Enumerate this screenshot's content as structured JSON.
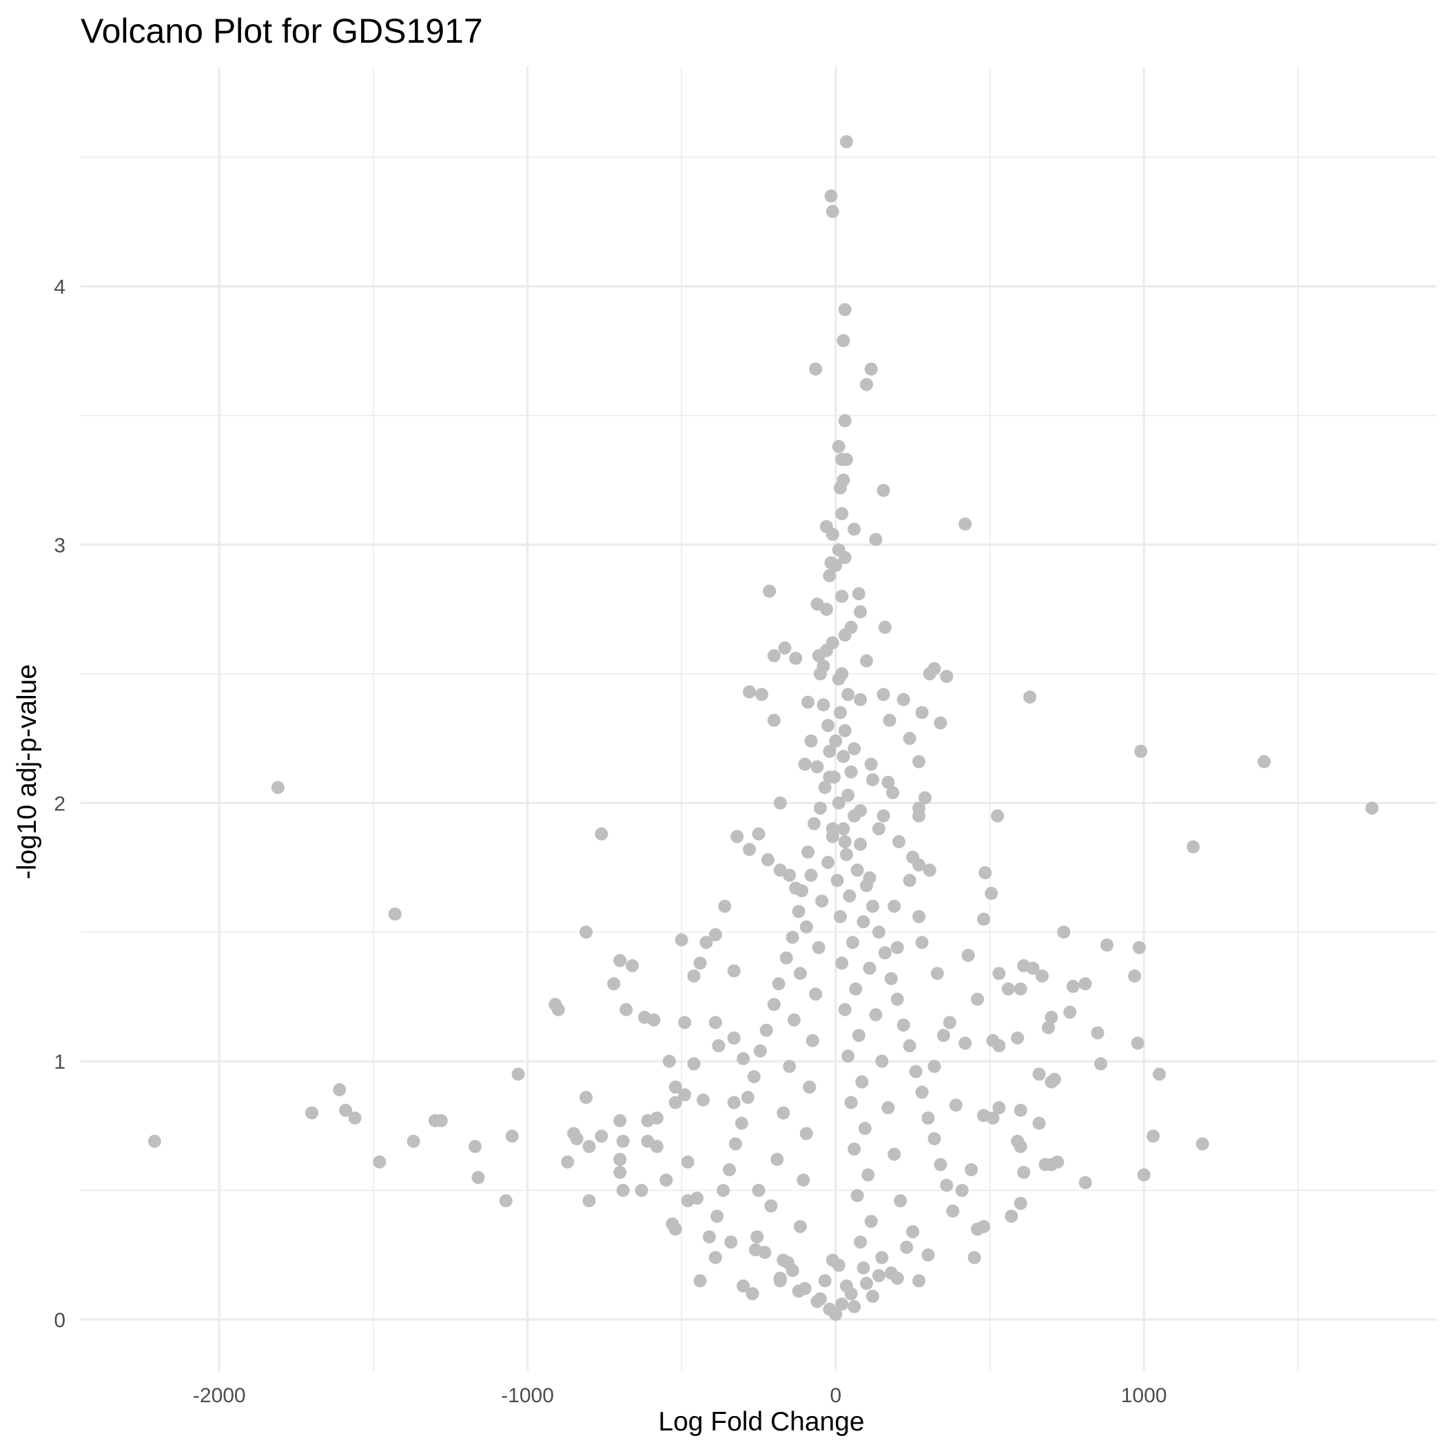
{
  "chart_data": {
    "type": "scatter",
    "title": "Volcano Plot for GDS1917",
    "xlabel": "Log Fold Change",
    "ylabel": "-log10 adj-p-value",
    "xlim": [
      -2450,
      1950
    ],
    "ylim": [
      -0.2,
      4.85
    ],
    "x_ticks": [
      -2000,
      -1000,
      0,
      1000
    ],
    "x_tick_labels": [
      "-2000",
      "-1000",
      "0",
      "1000"
    ],
    "y_ticks": [
      0,
      1,
      2,
      3,
      4
    ],
    "y_tick_labels": [
      "0",
      "1",
      "2",
      "3",
      "4"
    ],
    "x_minor_ticks": [
      -1500,
      -500,
      500,
      1500
    ],
    "y_minor_ticks": [
      0.5,
      1.5,
      2.5,
      3.5,
      4.5
    ],
    "grid": true,
    "legend": "none",
    "point_color": "#bebebe",
    "points": [
      [
        35,
        4.56
      ],
      [
        -15,
        4.35
      ],
      [
        -10,
        4.29
      ],
      [
        30,
        3.91
      ],
      [
        25,
        3.79
      ],
      [
        -65,
        3.68
      ],
      [
        115,
        3.68
      ],
      [
        100,
        3.62
      ],
      [
        30,
        3.48
      ],
      [
        10,
        3.38
      ],
      [
        20,
        3.33
      ],
      [
        35,
        3.33
      ],
      [
        25,
        3.25
      ],
      [
        15,
        3.22
      ],
      [
        155,
        3.21
      ],
      [
        420,
        3.08
      ],
      [
        20,
        3.12
      ],
      [
        -30,
        3.07
      ],
      [
        60,
        3.06
      ],
      [
        130,
        3.02
      ],
      [
        -10,
        3.04
      ],
      [
        10,
        2.98
      ],
      [
        -15,
        2.93
      ],
      [
        30,
        2.95
      ],
      [
        0,
        2.92
      ],
      [
        -20,
        2.88
      ],
      [
        -215,
        2.82
      ],
      [
        75,
        2.81
      ],
      [
        20,
        2.8
      ],
      [
        -60,
        2.77
      ],
      [
        80,
        2.74
      ],
      [
        -30,
        2.75
      ],
      [
        160,
        2.68
      ],
      [
        50,
        2.68
      ],
      [
        30,
        2.65
      ],
      [
        -165,
        2.6
      ],
      [
        -200,
        2.57
      ],
      [
        -130,
        2.56
      ],
      [
        100,
        2.55
      ],
      [
        -55,
        2.57
      ],
      [
        -40,
        2.53
      ],
      [
        320,
        2.52
      ],
      [
        305,
        2.5
      ],
      [
        360,
        2.49
      ],
      [
        20,
        2.5
      ],
      [
        -280,
        2.43
      ],
      [
        -240,
        2.42
      ],
      [
        630,
        2.41
      ],
      [
        155,
        2.42
      ],
      [
        220,
        2.4
      ],
      [
        -90,
        2.39
      ],
      [
        80,
        2.4
      ],
      [
        280,
        2.35
      ],
      [
        -200,
        2.32
      ],
      [
        175,
        2.32
      ],
      [
        340,
        2.31
      ],
      [
        240,
        2.25
      ],
      [
        -80,
        2.24
      ],
      [
        60,
        2.21
      ],
      [
        990,
        2.2
      ],
      [
        1390,
        2.16
      ],
      [
        -1810,
        2.06
      ],
      [
        -100,
        2.15
      ],
      [
        270,
        2.16
      ],
      [
        115,
        2.15
      ],
      [
        -20,
        2.1
      ],
      [
        170,
        2.08
      ],
      [
        120,
        2.09
      ],
      [
        185,
        2.04
      ],
      [
        290,
        2.02
      ],
      [
        -180,
        2.0
      ],
      [
        270,
        1.98
      ],
      [
        525,
        1.95
      ],
      [
        1740,
        1.98
      ],
      [
        80,
        1.97
      ],
      [
        155,
        1.95
      ],
      [
        270,
        1.95
      ],
      [
        -760,
        1.88
      ],
      [
        -320,
        1.87
      ],
      [
        -250,
        1.88
      ],
      [
        -10,
        1.9
      ],
      [
        140,
        1.9
      ],
      [
        205,
        1.85
      ],
      [
        1160,
        1.83
      ],
      [
        -280,
        1.82
      ],
      [
        30,
        1.85
      ],
      [
        -220,
        1.78
      ],
      [
        -180,
        1.74
      ],
      [
        250,
        1.79
      ],
      [
        270,
        1.76
      ],
      [
        305,
        1.74
      ],
      [
        485,
        1.73
      ],
      [
        -150,
        1.72
      ],
      [
        110,
        1.71
      ],
      [
        240,
        1.7
      ],
      [
        505,
        1.65
      ],
      [
        -130,
        1.67
      ],
      [
        190,
        1.6
      ],
      [
        -1430,
        1.57
      ],
      [
        -360,
        1.6
      ],
      [
        270,
        1.56
      ],
      [
        480,
        1.55
      ],
      [
        740,
        1.5
      ],
      [
        -810,
        1.5
      ],
      [
        -390,
        1.49
      ],
      [
        -500,
        1.47
      ],
      [
        -420,
        1.46
      ],
      [
        280,
        1.46
      ],
      [
        880,
        1.45
      ],
      [
        985,
        1.44
      ],
      [
        200,
        1.44
      ],
      [
        430,
        1.41
      ],
      [
        -700,
        1.39
      ],
      [
        -660,
        1.37
      ],
      [
        -440,
        1.38
      ],
      [
        -330,
        1.35
      ],
      [
        610,
        1.37
      ],
      [
        640,
        1.36
      ],
      [
        670,
        1.33
      ],
      [
        530,
        1.34
      ],
      [
        970,
        1.33
      ],
      [
        330,
        1.34
      ],
      [
        -460,
        1.33
      ],
      [
        -720,
        1.3
      ],
      [
        810,
        1.3
      ],
      [
        770,
        1.29
      ],
      [
        560,
        1.28
      ],
      [
        600,
        1.28
      ],
      [
        460,
        1.24
      ],
      [
        -910,
        1.22
      ],
      [
        -900,
        1.2
      ],
      [
        -680,
        1.2
      ],
      [
        -620,
        1.17
      ],
      [
        -590,
        1.16
      ],
      [
        760,
        1.19
      ],
      [
        -490,
        1.15
      ],
      [
        -390,
        1.15
      ],
      [
        700,
        1.17
      ],
      [
        370,
        1.15
      ],
      [
        850,
        1.11
      ],
      [
        690,
        1.13
      ],
      [
        -330,
        1.09
      ],
      [
        590,
        1.09
      ],
      [
        420,
        1.07
      ],
      [
        980,
        1.07
      ],
      [
        350,
        1.1
      ],
      [
        -380,
        1.06
      ],
      [
        510,
        1.08
      ],
      [
        530,
        1.06
      ],
      [
        -540,
        1.0
      ],
      [
        -300,
        1.01
      ],
      [
        860,
        0.99
      ],
      [
        -460,
        0.99
      ],
      [
        320,
        0.98
      ],
      [
        -1030,
        0.95
      ],
      [
        1050,
        0.95
      ],
      [
        660,
        0.95
      ],
      [
        710,
        0.93
      ],
      [
        700,
        0.92
      ],
      [
        -520,
        0.9
      ],
      [
        -1610,
        0.89
      ],
      [
        -490,
        0.87
      ],
      [
        -810,
        0.86
      ],
      [
        -430,
        0.85
      ],
      [
        -520,
        0.84
      ],
      [
        -330,
        0.84
      ],
      [
        390,
        0.83
      ],
      [
        530,
        0.82
      ],
      [
        600,
        0.81
      ],
      [
        -1590,
        0.81
      ],
      [
        -1700,
        0.8
      ],
      [
        -1560,
        0.78
      ],
      [
        -1300,
        0.77
      ],
      [
        -1280,
        0.77
      ],
      [
        -700,
        0.77
      ],
      [
        -580,
        0.78
      ],
      [
        -610,
        0.77
      ],
      [
        480,
        0.79
      ],
      [
        510,
        0.78
      ],
      [
        660,
        0.76
      ],
      [
        -850,
        0.72
      ],
      [
        -840,
        0.7
      ],
      [
        -760,
        0.71
      ],
      [
        -690,
        0.69
      ],
      [
        -1050,
        0.71
      ],
      [
        -1370,
        0.69
      ],
      [
        -2210,
        0.69
      ],
      [
        1030,
        0.71
      ],
      [
        1190,
        0.68
      ],
      [
        590,
        0.69
      ],
      [
        600,
        0.67
      ],
      [
        -610,
        0.69
      ],
      [
        -580,
        0.67
      ],
      [
        -800,
        0.67
      ],
      [
        -1170,
        0.67
      ],
      [
        -700,
        0.62
      ],
      [
        -480,
        0.61
      ],
      [
        -870,
        0.61
      ],
      [
        -1480,
        0.61
      ],
      [
        -700,
        0.57
      ],
      [
        -550,
        0.54
      ],
      [
        610,
        0.57
      ],
      [
        700,
        0.6
      ],
      [
        680,
        0.6
      ],
      [
        720,
        0.61
      ],
      [
        1000,
        0.56
      ],
      [
        810,
        0.53
      ],
      [
        -1160,
        0.55
      ],
      [
        -1070,
        0.46
      ],
      [
        -800,
        0.46
      ],
      [
        -630,
        0.5
      ],
      [
        -690,
        0.5
      ],
      [
        -480,
        0.46
      ],
      [
        -450,
        0.47
      ],
      [
        600,
        0.45
      ],
      [
        570,
        0.4
      ],
      [
        -530,
        0.37
      ],
      [
        -520,
        0.35
      ],
      [
        -410,
        0.32
      ],
      [
        -340,
        0.3
      ],
      [
        450,
        0.24
      ],
      [
        -390,
        0.24
      ],
      [
        -260,
        0.27
      ],
      [
        -170,
        0.23
      ],
      [
        -440,
        0.15
      ],
      [
        -270,
        0.1
      ],
      [
        -180,
        0.15
      ],
      [
        -300,
        0.13
      ],
      [
        270,
        0.15
      ],
      [
        200,
        0.16
      ],
      [
        460,
        0.35
      ],
      [
        480,
        0.36
      ],
      [
        410,
        0.5
      ],
      [
        440,
        0.58
      ],
      [
        -250,
        0.5
      ],
      [
        300,
        0.25
      ],
      [
        -30,
        2.59
      ],
      [
        -10,
        2.62
      ],
      [
        -50,
        2.5
      ],
      [
        10,
        2.48
      ],
      [
        40,
        2.42
      ],
      [
        -40,
        2.38
      ],
      [
        15,
        2.35
      ],
      [
        -25,
        2.3
      ],
      [
        30,
        2.28
      ],
      [
        0,
        2.24
      ],
      [
        -20,
        2.2
      ],
      [
        25,
        2.18
      ],
      [
        -60,
        2.14
      ],
      [
        50,
        2.12
      ],
      [
        -5,
        2.1
      ],
      [
        -35,
        2.06
      ],
      [
        40,
        2.03
      ],
      [
        10,
        2.0
      ],
      [
        -50,
        1.98
      ],
      [
        60,
        1.95
      ],
      [
        -70,
        1.92
      ],
      [
        25,
        1.9
      ],
      [
        -10,
        1.87
      ],
      [
        80,
        1.84
      ],
      [
        -90,
        1.81
      ],
      [
        35,
        1.8
      ],
      [
        -25,
        1.77
      ],
      [
        70,
        1.74
      ],
      [
        -80,
        1.72
      ],
      [
        5,
        1.7
      ],
      [
        100,
        1.68
      ],
      [
        -110,
        1.66
      ],
      [
        45,
        1.64
      ],
      [
        -45,
        1.62
      ],
      [
        120,
        1.6
      ],
      [
        -120,
        1.58
      ],
      [
        15,
        1.56
      ],
      [
        90,
        1.54
      ],
      [
        -95,
        1.52
      ],
      [
        140,
        1.5
      ],
      [
        -140,
        1.48
      ],
      [
        55,
        1.46
      ],
      [
        -55,
        1.44
      ],
      [
        160,
        1.42
      ],
      [
        -160,
        1.4
      ],
      [
        20,
        1.38
      ],
      [
        110,
        1.36
      ],
      [
        -115,
        1.34
      ],
      [
        180,
        1.32
      ],
      [
        -185,
        1.3
      ],
      [
        65,
        1.28
      ],
      [
        -65,
        1.26
      ],
      [
        200,
        1.24
      ],
      [
        -200,
        1.22
      ],
      [
        30,
        1.2
      ],
      [
        130,
        1.18
      ],
      [
        -135,
        1.16
      ],
      [
        220,
        1.14
      ],
      [
        -225,
        1.12
      ],
      [
        75,
        1.1
      ],
      [
        -75,
        1.08
      ],
      [
        240,
        1.06
      ],
      [
        -245,
        1.04
      ],
      [
        40,
        1.02
      ],
      [
        150,
        1.0
      ],
      [
        -150,
        0.98
      ],
      [
        260,
        0.96
      ],
      [
        -265,
        0.94
      ],
      [
        85,
        0.92
      ],
      [
        -85,
        0.9
      ],
      [
        280,
        0.88
      ],
      [
        -285,
        0.86
      ],
      [
        50,
        0.84
      ],
      [
        170,
        0.82
      ],
      [
        -170,
        0.8
      ],
      [
        300,
        0.78
      ],
      [
        -305,
        0.76
      ],
      [
        95,
        0.74
      ],
      [
        -95,
        0.72
      ],
      [
        320,
        0.7
      ],
      [
        -325,
        0.68
      ],
      [
        60,
        0.66
      ],
      [
        190,
        0.64
      ],
      [
        -190,
        0.62
      ],
      [
        340,
        0.6
      ],
      [
        -345,
        0.58
      ],
      [
        105,
        0.56
      ],
      [
        -105,
        0.54
      ],
      [
        360,
        0.52
      ],
      [
        -365,
        0.5
      ],
      [
        70,
        0.48
      ],
      [
        210,
        0.46
      ],
      [
        -210,
        0.44
      ],
      [
        380,
        0.42
      ],
      [
        -385,
        0.4
      ],
      [
        115,
        0.38
      ],
      [
        -115,
        0.36
      ],
      [
        250,
        0.34
      ],
      [
        -255,
        0.32
      ],
      [
        80,
        0.3
      ],
      [
        230,
        0.28
      ],
      [
        -230,
        0.26
      ],
      [
        150,
        0.24
      ],
      [
        -155,
        0.22
      ],
      [
        90,
        0.2
      ],
      [
        180,
        0.18
      ],
      [
        -180,
        0.16
      ],
      [
        100,
        0.14
      ],
      [
        -100,
        0.12
      ],
      [
        50,
        0.1
      ],
      [
        -50,
        0.08
      ],
      [
        20,
        0.06
      ],
      [
        -20,
        0.04
      ],
      [
        0,
        0.02
      ],
      [
        60,
        0.05
      ],
      [
        -60,
        0.07
      ],
      [
        120,
        0.09
      ],
      [
        -120,
        0.11
      ],
      [
        35,
        0.13
      ],
      [
        -35,
        0.15
      ],
      [
        140,
        0.17
      ],
      [
        -140,
        0.19
      ],
      [
        10,
        0.21
      ],
      [
        -10,
        0.23
      ]
    ]
  }
}
